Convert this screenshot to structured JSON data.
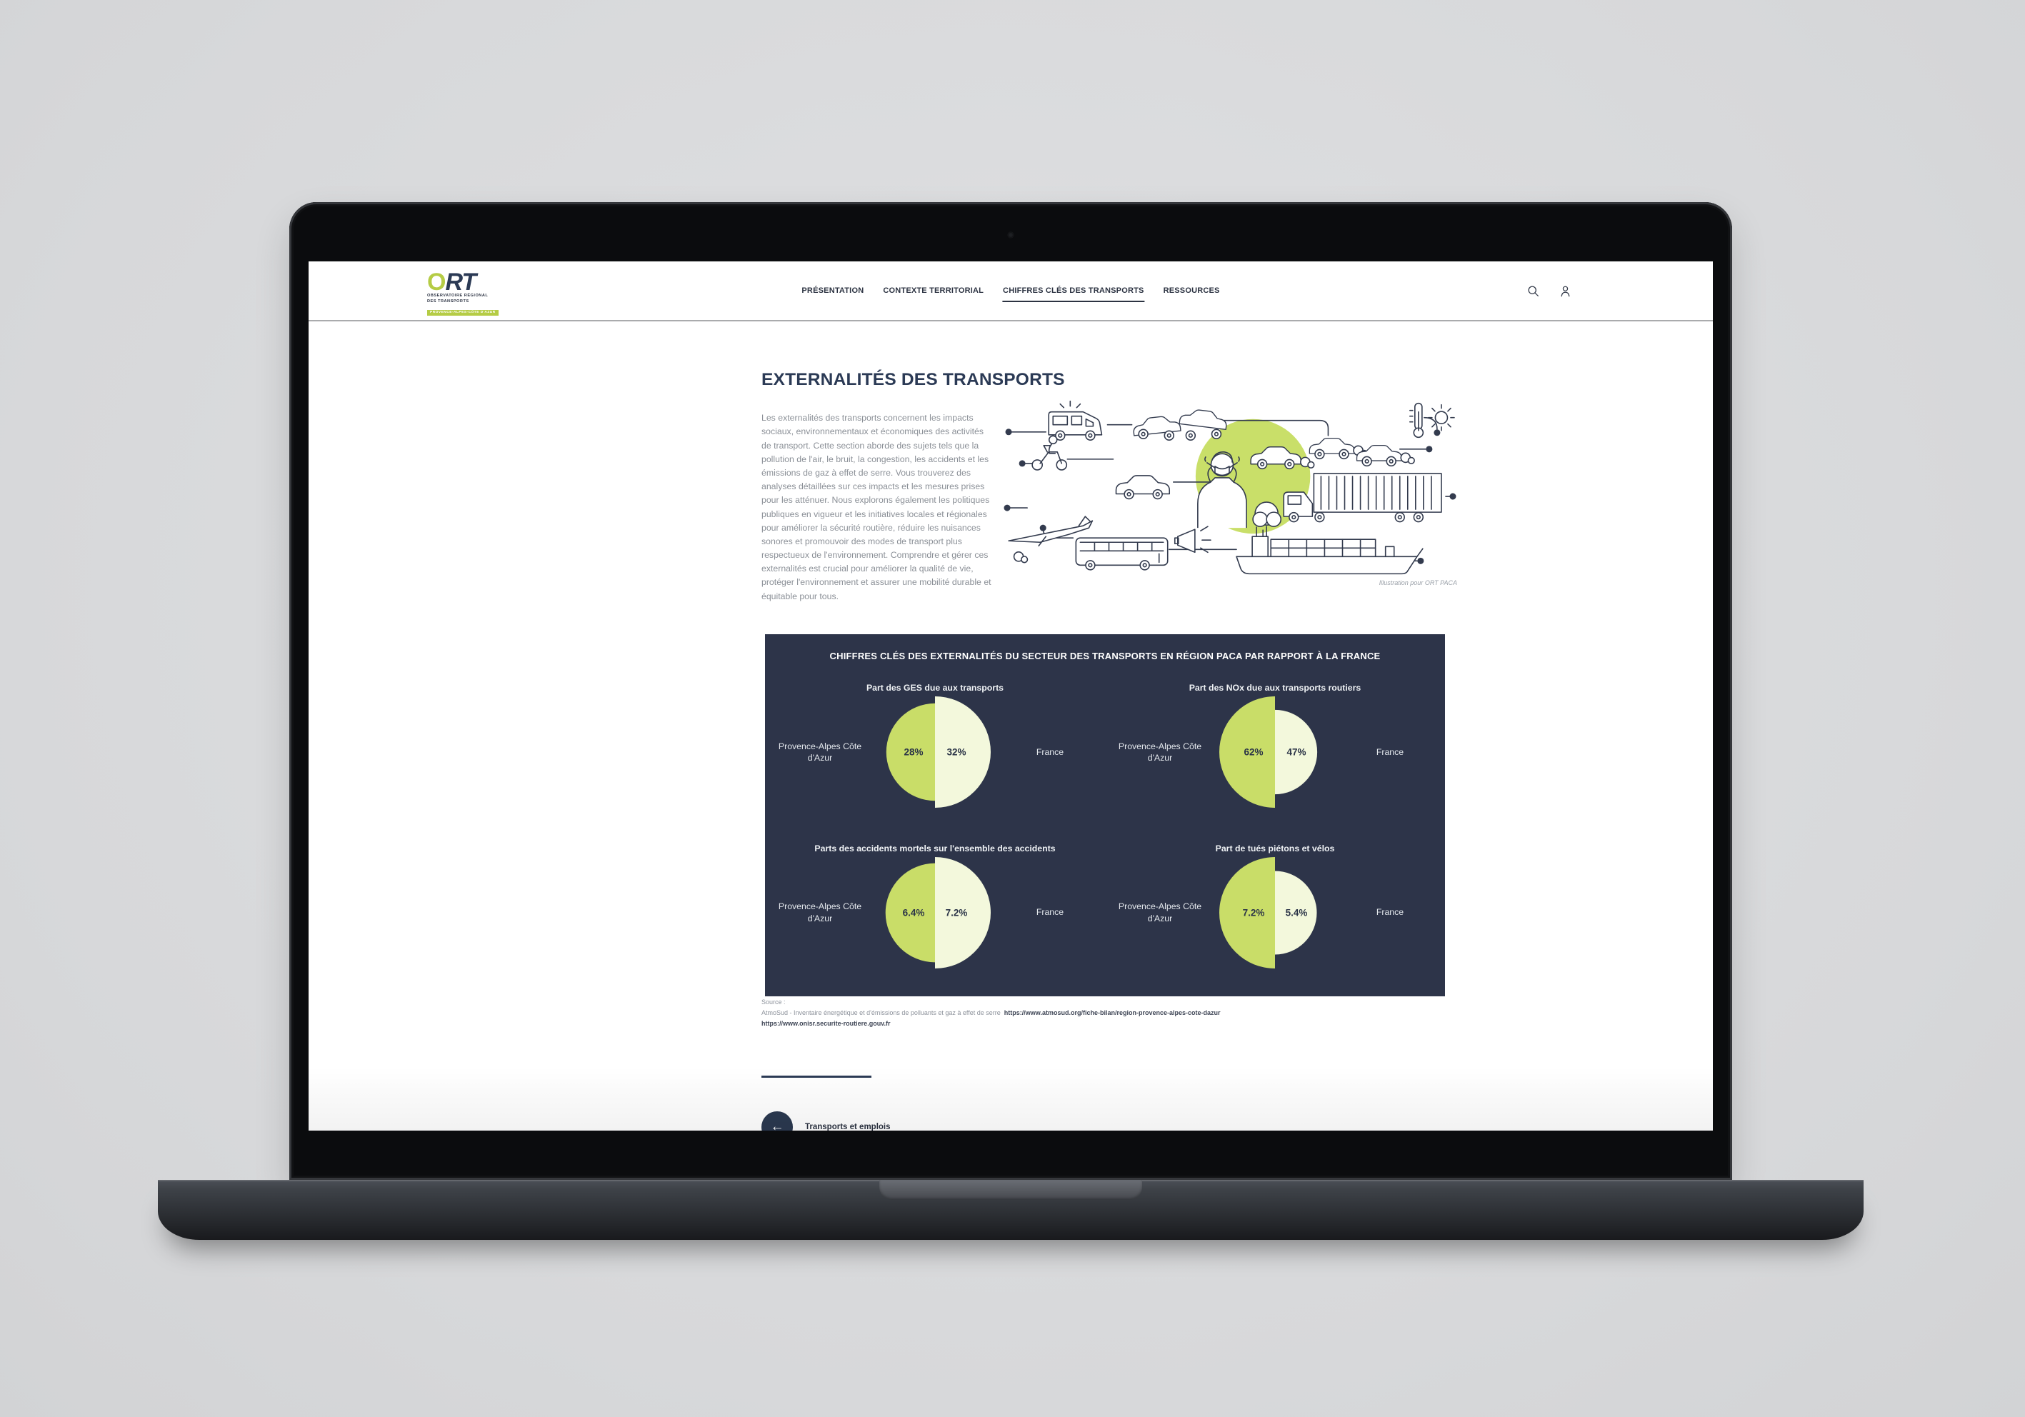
{
  "header": {
    "logo": {
      "o": "O",
      "rt": "RT",
      "line1": "OBSERVATOIRE RÉGIONAL",
      "line2": "DES TRANSPORTS",
      "badge": "PROVENCE-ALPES-CÔTE D'AZUR"
    },
    "nav": [
      {
        "label": "PRÉSENTATION",
        "active": false
      },
      {
        "label": "CONTEXTE TERRITORIAL",
        "active": false
      },
      {
        "label": "CHIFFRES CLÉS DES TRANSPORTS",
        "active": true
      },
      {
        "label": "RESSOURCES",
        "active": false
      }
    ],
    "icons": [
      {
        "name": "search-icon"
      },
      {
        "name": "user-icon"
      }
    ]
  },
  "main": {
    "title": "EXTERNALITÉS DES TRANSPORTS",
    "intro": "Les externalités des transports concernent les impacts sociaux, environnementaux et économiques des activités de transport. Cette section aborde des sujets tels que la pollution de l'air, le bruit, la congestion, les accidents et les émissions de gaz à effet de serre. Vous trouverez des analyses détaillées sur ces impacts et les mesures prises pour les atténuer. Nous explorons également les politiques publiques en vigueur et les initiatives locales et régionales pour améliorer la sécurité routière, réduire les nuisances sonores et promouvoir des modes de transport plus respectueux de l'environnement. Comprendre et gérer ces externalités est crucial pour améliorer la qualité de vie, protéger l'environnement et assurer une mobilité durable et équitable pour tous.",
    "illustration_caption": "Illustration pour ORT PACA"
  },
  "panel": {
    "title": "CHIFFRES CLÉS DES EXTERNALITÉS DU SECTEUR DES TRANSPORTS EN RÉGION PACA PAR RAPPORT À LA FRANCE",
    "colors": {
      "background": "#2d3449",
      "paca": "#c9dd68",
      "france": "#f3f8dc",
      "value_text": "#2b3447"
    }
  },
  "chart_data": [
    {
      "type": "pie",
      "title": "Part des GES due aux transports",
      "series": [
        {
          "name": "Provence-Alpes Côte d'Azur",
          "value": 28,
          "label": "28%"
        },
        {
          "name": "France",
          "value": 32,
          "label": "32%"
        }
      ]
    },
    {
      "type": "pie",
      "title": "Part des NOx due aux transports routiers",
      "series": [
        {
          "name": "Provence-Alpes Côte d'Azur",
          "value": 62,
          "label": "62%"
        },
        {
          "name": "France",
          "value": 47,
          "label": "47%"
        }
      ]
    },
    {
      "type": "pie",
      "title": "Parts des accidents mortels sur l'ensemble des accidents",
      "series": [
        {
          "name": "Provence-Alpes Côte d'Azur",
          "value": 6.4,
          "label": "6.4%"
        },
        {
          "name": "France",
          "value": 7.2,
          "label": "7.2%"
        }
      ]
    },
    {
      "type": "pie",
      "title": "Part de tués piétons et vélos",
      "series": [
        {
          "name": "Provence-Alpes Côte d'Azur",
          "value": 7.2,
          "label": "7.2%"
        },
        {
          "name": "France",
          "value": 5.4,
          "label": "5.4%"
        }
      ]
    }
  ],
  "source": {
    "label": "Source :",
    "attribution": "AtmoSud - Inventaire énergétique et d'émissions de polluants et gaz à effet de serre",
    "url1": "https://www.atmosud.org/fiche-bilan/region-provence-alpes-cote-dazur",
    "url2": "https://www.onisr.securite-routiere.gouv.fr"
  },
  "footer": {
    "back_label": "Transports et emplois",
    "back_icon": "arrow-left-icon"
  }
}
